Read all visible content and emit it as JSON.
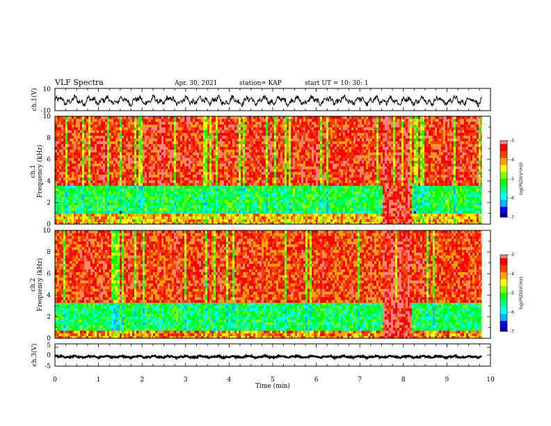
{
  "header": {
    "title": "VLF Spectra",
    "date": "Apr. 30, 2021",
    "station": "station= KAP",
    "start": "start  UT =   10: 30: 1"
  },
  "chart_data": [
    {
      "type": "line",
      "name": "ch.1 waveform",
      "ylabel": "ch.1(V)",
      "ylim": [
        -10,
        10
      ],
      "yticklabels": [
        "10",
        "-10"
      ],
      "xlim": [
        0,
        10
      ],
      "description_values": {
        "mean": -1,
        "amplitude": 4
      }
    },
    {
      "type": "heatmap",
      "name": "ch.1 spectrogram",
      "ylabel_line1": "ch.1",
      "ylabel_line2": "Frequency  (kHz)",
      "ylim": [
        0,
        10
      ],
      "yticks": [
        "0",
        "2",
        "4",
        "6",
        "8",
        "10"
      ],
      "xlim": [
        0,
        10
      ],
      "data_end_min": 9.8,
      "colorbar": {
        "label": "log(PSD)(V²/Hz)",
        "range": [
          -7,
          -3
        ],
        "ticks": [
          "-3",
          "-4",
          "-5",
          "-6",
          "-7"
        ]
      },
      "bands_kHz": [
        {
          "from": 0.0,
          "to": 0.9,
          "level": -4.2
        },
        {
          "from": 0.9,
          "to": 1.3,
          "level": -5.6
        },
        {
          "from": 1.3,
          "to": 3.5,
          "level": -5.3
        },
        {
          "from": 3.5,
          "to": 10.0,
          "level": -3.6
        }
      ],
      "event_window_min": [
        7.5,
        8.15
      ]
    },
    {
      "type": "heatmap",
      "name": "ch.2 spectrogram",
      "ylabel_line1": "ch.2",
      "ylabel_line2": "Frequency  (kHz)",
      "ylim": [
        0,
        10
      ],
      "yticks": [
        "0",
        "2",
        "4",
        "6",
        "8",
        "10"
      ],
      "xlim": [
        0,
        10
      ],
      "data_end_min": 9.8,
      "colorbar": {
        "label": "log(PSD)(V²/Hz)",
        "range": [
          -7,
          -3
        ],
        "ticks": [
          "-3",
          "-4",
          "-5",
          "-6",
          "-7"
        ]
      },
      "bands_kHz": [
        {
          "from": 0.0,
          "to": 0.8,
          "level": -4.0
        },
        {
          "from": 0.8,
          "to": 3.2,
          "level": -5.4
        },
        {
          "from": 3.2,
          "to": 10.0,
          "level": -3.7
        }
      ],
      "event_window_min": [
        7.5,
        8.15
      ]
    },
    {
      "type": "line",
      "name": "ch.3 waveform",
      "ylabel": "ch.3(V)",
      "ylim": [
        -5,
        5
      ],
      "yticklabels": [
        "5",
        "0",
        "-5"
      ],
      "xlim": [
        0,
        10
      ],
      "description_values": {
        "mean": -0.8,
        "amplitude": 0.5
      }
    }
  ],
  "xaxis": {
    "label": "Time  (min)",
    "ticks": [
      "0",
      "1",
      "2",
      "3",
      "4",
      "5",
      "6",
      "7",
      "8",
      "9",
      "10"
    ]
  },
  "colors": {
    "colormap": [
      "#000080",
      "#0000ff",
      "#00b4ff",
      "#00ffff",
      "#00ff80",
      "#00ff00",
      "#80ff00",
      "#ffff00",
      "#ffa000",
      "#ff4000",
      "#ff0000",
      "#ff8080",
      "#ffffff"
    ],
    "line": "#000000"
  }
}
